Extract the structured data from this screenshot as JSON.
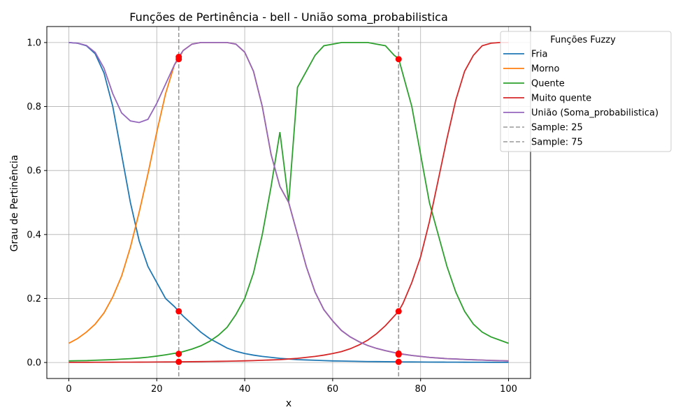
{
  "chart_data": {
    "type": "line",
    "title": "Funções de Pertinência - bell - União soma_probabilistica",
    "xlabel": "x",
    "ylabel": "Grau de Pertinência",
    "xlim": [
      -5,
      105
    ],
    "ylim": [
      -0.05,
      1.05
    ],
    "x_ticks": [
      0,
      20,
      40,
      60,
      80,
      100
    ],
    "y_ticks": [
      0.0,
      0.2,
      0.4,
      0.6,
      0.8,
      1.0
    ],
    "x_tick_labels": [
      "0",
      "20",
      "40",
      "60",
      "80",
      "100"
    ],
    "y_tick_labels": [
      "0.0",
      "0.2",
      "0.4",
      "0.6",
      "0.8",
      "1.0"
    ],
    "grid": true,
    "legend": {
      "title": "Funções Fuzzy",
      "placement": "upper-right-outside"
    },
    "x": [
      0,
      2,
      4,
      6,
      8,
      10,
      12,
      14,
      16,
      18,
      20,
      22,
      24,
      25,
      26,
      28,
      30,
      32,
      34,
      36,
      38,
      40,
      42,
      44,
      46,
      48,
      50,
      52,
      54,
      56,
      58,
      60,
      62,
      64,
      66,
      68,
      70,
      72,
      74,
      75,
      76,
      78,
      80,
      82,
      84,
      86,
      88,
      90,
      92,
      94,
      96,
      98,
      100
    ],
    "series": [
      {
        "name": "Fria",
        "color": "#1f77b4",
        "values": [
          1.0,
          0.998,
          0.99,
          0.965,
          0.905,
          0.8,
          0.65,
          0.5,
          0.38,
          0.3,
          0.25,
          0.2,
          0.175,
          0.16,
          0.145,
          0.12,
          0.095,
          0.075,
          0.06,
          0.045,
          0.035,
          0.028,
          0.023,
          0.019,
          0.016,
          0.013,
          0.011,
          0.009,
          0.008,
          0.007,
          0.006,
          0.005,
          0.0045,
          0.004,
          0.0035,
          0.003,
          0.0028,
          0.0025,
          0.0022,
          0.002,
          0.0019,
          0.0017,
          0.0015,
          0.0013,
          0.0012,
          0.0011,
          0.001,
          0.0009,
          0.0008,
          0.0007,
          0.0006,
          0.0005,
          0.0005
        ]
      },
      {
        "name": "Morno",
        "color": "#ff7f0e",
        "values": [
          0.06,
          0.075,
          0.095,
          0.12,
          0.155,
          0.205,
          0.27,
          0.36,
          0.47,
          0.59,
          0.72,
          0.84,
          0.93,
          0.95,
          0.975,
          0.995,
          1.0,
          1.0,
          1.0,
          1.0,
          0.995,
          0.97,
          0.91,
          0.8,
          0.65,
          0.55,
          0.5,
          0.4,
          0.3,
          0.22,
          0.165,
          0.13,
          0.1,
          0.08,
          0.065,
          0.053,
          0.044,
          0.037,
          0.031,
          0.028,
          0.026,
          0.022,
          0.019,
          0.016,
          0.014,
          0.012,
          0.011,
          0.0095,
          0.0085,
          0.0075,
          0.0065,
          0.0058,
          0.005
        ]
      },
      {
        "name": "Quente",
        "color": "#2ca02c",
        "values": [
          0.005,
          0.0055,
          0.006,
          0.007,
          0.008,
          0.009,
          0.0105,
          0.012,
          0.014,
          0.0165,
          0.02,
          0.024,
          0.0285,
          0.031,
          0.034,
          0.042,
          0.052,
          0.066,
          0.085,
          0.11,
          0.15,
          0.2,
          0.28,
          0.4,
          0.55,
          0.72,
          0.5,
          0.86,
          0.91,
          0.96,
          0.99,
          0.995,
          1.0,
          1.0,
          1.0,
          1.0,
          0.995,
          0.99,
          0.96,
          0.95,
          0.9,
          0.8,
          0.65,
          0.5,
          0.4,
          0.3,
          0.22,
          0.16,
          0.12,
          0.095,
          0.08,
          0.07,
          0.06
        ]
      },
      {
        "name": "Muito quente",
        "color": "#d62728",
        "values": [
          0.0005,
          0.0005,
          0.0006,
          0.0007,
          0.0008,
          0.0009,
          0.001,
          0.0011,
          0.0012,
          0.0013,
          0.0015,
          0.0017,
          0.0019,
          0.002,
          0.0022,
          0.0025,
          0.0028,
          0.0032,
          0.0036,
          0.004,
          0.0045,
          0.0052,
          0.006,
          0.007,
          0.008,
          0.009,
          0.011,
          0.013,
          0.016,
          0.019,
          0.023,
          0.028,
          0.034,
          0.043,
          0.055,
          0.07,
          0.09,
          0.115,
          0.145,
          0.16,
          0.185,
          0.25,
          0.33,
          0.44,
          0.57,
          0.7,
          0.82,
          0.91,
          0.96,
          0.99,
          0.998,
          1.0,
          1.0
        ]
      },
      {
        "name": "União (Soma_probabilistica)",
        "color": "#9467bd",
        "values": [
          1.0,
          0.998,
          0.991,
          0.969,
          0.92,
          0.84,
          0.78,
          0.755,
          0.75,
          0.76,
          0.81,
          0.87,
          0.93,
          0.955,
          0.975,
          0.995,
          1.0,
          1.0,
          1.0,
          1.0,
          0.995,
          0.97,
          0.91,
          0.8,
          0.65,
          0.55,
          0.5,
          0.4,
          0.3,
          0.22,
          0.165,
          0.13,
          0.1,
          0.08,
          0.065,
          0.053,
          0.044,
          0.037,
          0.031,
          0.028,
          0.026,
          0.022,
          0.019,
          0.016,
          0.014,
          0.012,
          0.011,
          0.0095,
          0.0085,
          0.0075,
          0.0065,
          0.0058,
          0.005
        ]
      },
      {
        "name": "Sample: 25",
        "color": "#999999",
        "style": "dashed",
        "vline": 25
      },
      {
        "name": "Sample: 75",
        "color": "#999999",
        "style": "dashed",
        "vline": 75
      }
    ],
    "sample_points": [
      {
        "x": 25,
        "y": 0.955
      },
      {
        "x": 25,
        "y": 0.948
      },
      {
        "x": 25,
        "y": 0.16
      },
      {
        "x": 25,
        "y": 0.027
      },
      {
        "x": 25,
        "y": 0.002
      },
      {
        "x": 75,
        "y": 0.948
      },
      {
        "x": 75,
        "y": 0.16
      },
      {
        "x": 75,
        "y": 0.028
      },
      {
        "x": 75,
        "y": 0.025
      },
      {
        "x": 75,
        "y": 0.002
      }
    ],
    "sample_point_color": "#ff0000"
  }
}
